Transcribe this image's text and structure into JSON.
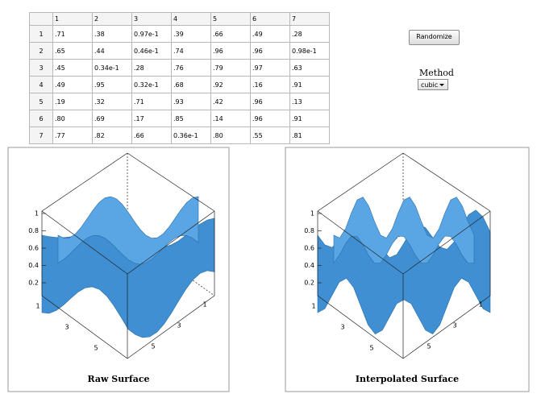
{
  "table": {
    "columns": [
      "1",
      "2",
      "3",
      "4",
      "5",
      "6",
      "7"
    ],
    "rows": [
      {
        "header": "1",
        "cells": [
          ".71",
          ".38",
          "0.97e-1",
          ".39",
          ".66",
          ".49",
          ".28"
        ]
      },
      {
        "header": "2",
        "cells": [
          ".65",
          ".44",
          "0.46e-1",
          ".74",
          ".96",
          ".96",
          "0.98e-1"
        ]
      },
      {
        "header": "3",
        "cells": [
          ".45",
          "0.34e-1",
          ".28",
          ".76",
          ".79",
          ".97",
          ".63"
        ]
      },
      {
        "header": "4",
        "cells": [
          ".49",
          ".95",
          "0.32e-1",
          ".68",
          ".92",
          ".16",
          ".91"
        ]
      },
      {
        "header": "5",
        "cells": [
          ".19",
          ".32",
          ".71",
          ".93",
          ".42",
          ".96",
          ".13"
        ]
      },
      {
        "header": "6",
        "cells": [
          ".80",
          ".69",
          ".17",
          ".85",
          ".14",
          ".96",
          ".91"
        ]
      },
      {
        "header": "7",
        "cells": [
          ".77",
          ".82",
          ".66",
          "0.36e-1",
          ".80",
          ".55",
          ".81"
        ]
      }
    ]
  },
  "controls": {
    "button": "Randomize",
    "method_label": "Method",
    "method_value": "cubic"
  },
  "plots": [
    {
      "title": "Raw Surface",
      "z_ticks": [
        "1",
        "0.8",
        "0.6",
        "0.4",
        "0.2"
      ],
      "x_ticks": [
        "1",
        "3",
        "5"
      ],
      "y_ticks": [
        "1",
        "3",
        "5"
      ]
    },
    {
      "title": "Interpolated Surface",
      "z_ticks": [
        "1",
        "0.8",
        "0.6",
        "0.4",
        "0.2"
      ],
      "x_ticks": [
        "1",
        "3",
        "5"
      ],
      "y_ticks": [
        "1",
        "3",
        "5"
      ]
    }
  ]
}
